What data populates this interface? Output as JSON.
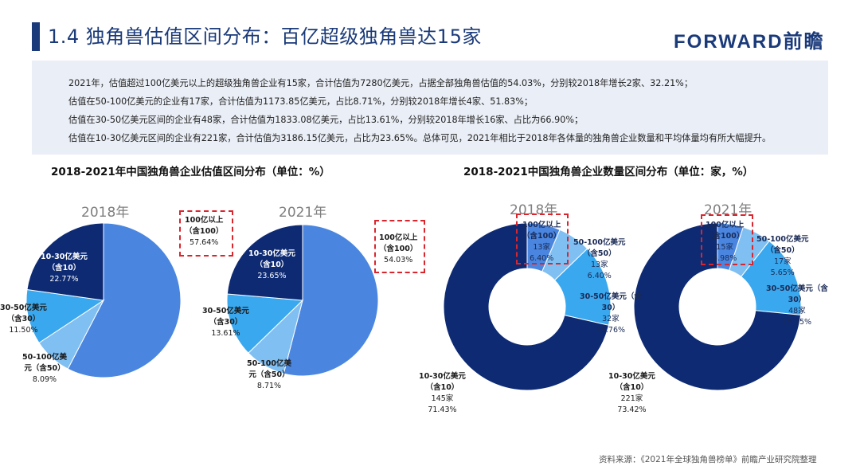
{
  "header": {
    "title": "1.4 独角兽估值区间分布：百亿超级独角兽达15家",
    "logo": "FORWARD前瞻"
  },
  "summary": {
    "lines": [
      "2021年，估值超过100亿美元以上的超级独角兽企业有15家，合计估值为7280亿美元，占据全部独角兽估值的54.03%，分别较2018年增长2家、32.21%；",
      "估值在50-100亿美元的企业有17家，合计估值为1173.85亿美元，占比8.71%，分别较2018年增长4家、51.83%；",
      "估值在30-50亿美元区间的企业有48家，合计估值为1833.08亿美元，占比13.61%，分别较2018年增长16家、占比为66.90%；",
      "估值在10-30亿美元区间的企业有221家，合计估值为3186.15亿美元，占比为23.65%。总体可见，2021年相比于2018年各体量的独角兽企业数量和平均体量均有所大幅提升。"
    ]
  },
  "colors": {
    "c100": "#4a86e0",
    "c50_100": "#80bff2",
    "c30_50": "#3aa8ee",
    "c10_30": "#0d2a73",
    "accent": "#d9262d",
    "title": "#1a3a7a"
  },
  "chart_data": [
    {
      "type": "pie",
      "title": "2018-2021年中国独角兽企业估值区间分布（单位：%）",
      "year": "2018年",
      "categories": [
        "100亿以上（含100）",
        "50-100亿美元（含50）",
        "30-50亿美元（含30）",
        "10-30亿美元（含10）"
      ],
      "values": [
        57.64,
        8.09,
        11.5,
        22.77
      ],
      "labels": {
        "c100": [
          "100亿以上",
          "（含100）",
          "57.64%"
        ],
        "c50_100": [
          "50-100亿美",
          "元（含50）",
          "8.09%"
        ],
        "c30_50": [
          "30-50亿美元",
          "（含30）",
          "11.50%"
        ],
        "c10_30": [
          "10-30亿美元",
          "（含10）",
          "22.77%"
        ]
      }
    },
    {
      "type": "pie",
      "title": "2018-2021年中国独角兽企业估值区间分布（单位：%）",
      "year": "2021年",
      "categories": [
        "100亿以上（含100）",
        "50-100亿美元（含50）",
        "30-50亿美元（含30）",
        "10-30亿美元（含10）"
      ],
      "values": [
        54.03,
        8.71,
        13.61,
        23.65
      ],
      "labels": {
        "c100": [
          "100亿以上",
          "（含100）",
          "54.03%"
        ],
        "c50_100": [
          "50-100亿美",
          "元（含50）",
          "8.71%"
        ],
        "c30_50": [
          "30-50亿美元",
          "（含30）",
          "13.61%"
        ],
        "c10_30": [
          "10-30亿美元",
          "（含10）",
          "23.65%"
        ]
      }
    },
    {
      "type": "pie",
      "title": "2018-2021中国独角兽企业数量区间分布（单位：家，%）",
      "year": "2018年",
      "categories": [
        "100亿以上（含100）",
        "50-100亿美元（含50）",
        "30-50亿美元（含30）",
        "10-30亿美元（含10）"
      ],
      "values": [
        6.4,
        6.4,
        15.76,
        71.43
      ],
      "counts": [
        13,
        13,
        32,
        145
      ],
      "labels": {
        "c100": [
          "100亿以上",
          "（含100）",
          "13家",
          "6.40%"
        ],
        "c50_100": [
          "50-100亿美元",
          "（含50）",
          "13家",
          "6.40%"
        ],
        "c30_50": [
          "30-50亿美元（含",
          "30）",
          "32家",
          "15.76%"
        ],
        "c10_30": [
          "10-30亿美元",
          "（含10）",
          "145家",
          "71.43%"
        ]
      }
    },
    {
      "type": "pie",
      "title": "2018-2021中国独角兽企业数量区间分布（单位：家，%）",
      "year": "2021年",
      "categories": [
        "100亿以上（含100）",
        "50-100亿美元（含50）",
        "30-50亿美元（含30）",
        "10-30亿美元（含10）"
      ],
      "values": [
        4.98,
        5.65,
        15.95,
        73.42
      ],
      "counts": [
        15,
        17,
        48,
        221
      ],
      "labels": {
        "c100": [
          "100亿以上",
          "（含100）",
          "15家",
          "4.98%"
        ],
        "c50_100": [
          "50-100亿美元",
          "（含50）",
          "17家",
          "5.65%"
        ],
        "c30_50": [
          "30-50亿美元（含",
          "30）",
          "48家",
          "15.95%"
        ],
        "c10_30": [
          "10-30亿美元",
          "（含10）",
          "221家",
          "73.42%"
        ]
      }
    }
  ],
  "source": "资料来源：《2021年全球独角兽榜单》前瞻产业研究院整理"
}
